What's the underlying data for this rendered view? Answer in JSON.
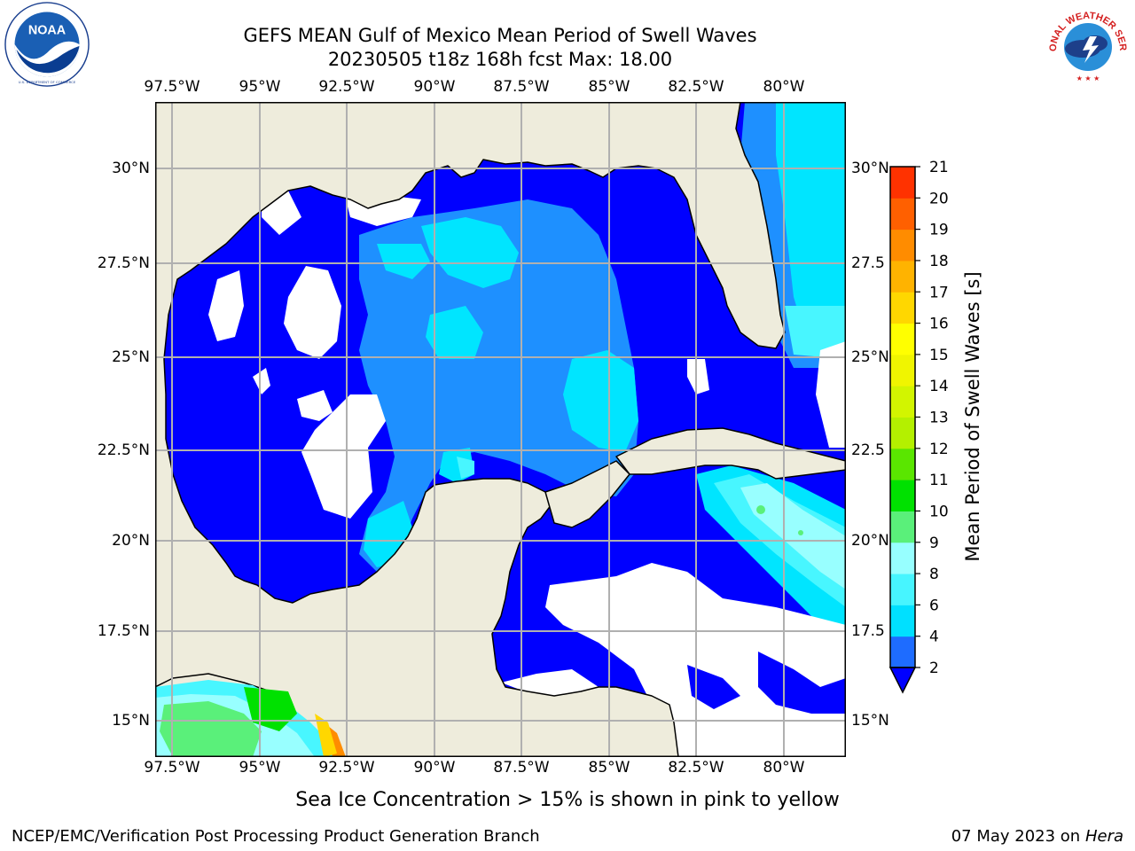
{
  "title": {
    "line1": "GEFS MEAN Gulf of Mexico Mean Period of Swell Waves",
    "line2": "20230505 t18z 168h fcst   Max: 18.00"
  },
  "logos": {
    "noaa": {
      "icon": "noaa-logo",
      "text": "NOAA",
      "ring_text": "NATIONAL OCEANIC AND ATMOSPHERIC ADMINISTRATION · U.S. DEPARTMENT OF COMMERCE"
    },
    "nws": {
      "icon": "nws-logo",
      "ring_text": "NATIONAL WEATHER SERVICE"
    }
  },
  "chart_data": {
    "type": "heatmap",
    "title": "GEFS MEAN Gulf of Mexico Mean Period of Swell Waves",
    "subtitle": "20230505 t18z 168h fcst   Max: 18.00",
    "max_value": 18.0,
    "x_ticks_top": [
      "97.5°W",
      "95°W",
      "92.5°W",
      "90°W",
      "87.5°W",
      "85°W",
      "82.5°W",
      "80°W"
    ],
    "x_ticks_bottom": [
      "97.5°W",
      "95°W",
      "92.5°W",
      "90°W",
      "87.5°W",
      "85°W",
      "82.5°W",
      "80°W"
    ],
    "y_ticks_left": [
      "30°N",
      "27.5°N",
      "25°N",
      "22.5°N",
      "20°N",
      "17.5°N",
      "15°N"
    ],
    "y_ticks_right": [
      "30°N",
      "27.5",
      "25°N",
      "22.5",
      "20°N",
      "17.5",
      "15°N"
    ],
    "lon_range": [
      -98,
      -78.2
    ],
    "lat_range": [
      14,
      31.8
    ],
    "grid": true,
    "colorbar": {
      "label": "Mean Period of Swell Waves [s]",
      "ticks": [
        2,
        4,
        6,
        8,
        9,
        10,
        11,
        12,
        13,
        14,
        15,
        16,
        17,
        18,
        19,
        20,
        21
      ],
      "bounds": [
        2,
        4,
        6,
        8,
        9,
        10,
        11,
        12,
        13,
        14,
        15,
        16,
        17,
        18,
        19,
        20,
        21
      ],
      "colors": [
        "#1e6cff",
        "#00e0ff",
        "#47f5ff",
        "#97ffff",
        "#5af07a",
        "#00e100",
        "#5ae600",
        "#b4f000",
        "#d2f500",
        "#f0f500",
        "#ffff00",
        "#ffd700",
        "#ffb300",
        "#ff8c00",
        "#ff6000",
        "#ff3200",
        "#ff0000"
      ],
      "extend_low_color": "#0000ff",
      "location": "right"
    },
    "field_colors": {
      "land": "#eeecdc",
      "below_2": "#0000ff",
      "2_to_4": "#1e90ff",
      "4_to_6": "#00e5ff",
      "6_to_8": "#48f6ff",
      "8_to_9": "#98ffff",
      "9_to_10": "#5af07a",
      "10_to_11": "#00e100",
      "missing": "#ffffff"
    }
  },
  "footer": {
    "subtitle": "Sea Ice Concentration > 15% is shown in pink to yellow",
    "left": "NCEP/EMC/Verification Post Processing Product Generation Branch",
    "right_date": "07 May 2023 on",
    "right_host": "Hera"
  }
}
